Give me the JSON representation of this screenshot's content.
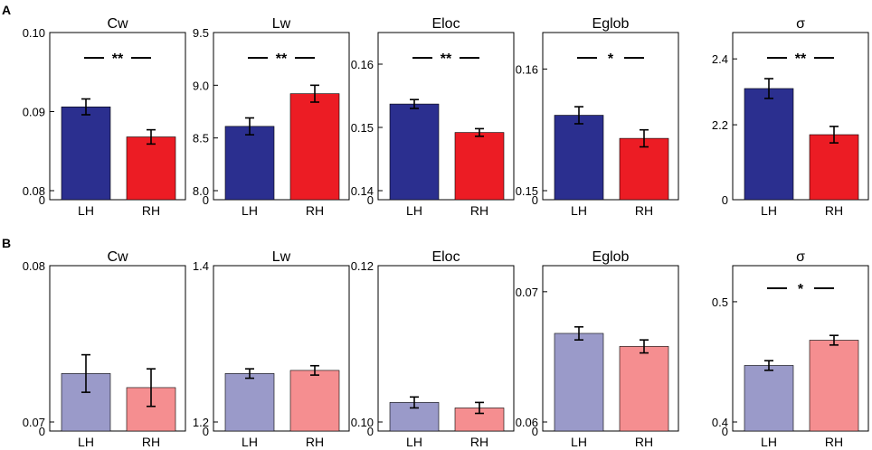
{
  "panels": [
    {
      "label": "A"
    },
    {
      "label": "B"
    }
  ],
  "chart_data": [
    {
      "type": "bar",
      "panel": "A",
      "title": "Cw",
      "categories": [
        "LH",
        "RH"
      ],
      "values": [
        0.0906,
        0.0868
      ],
      "errors": [
        0.001,
        0.0009
      ],
      "colors": [
        "#2b2f8f",
        "#ec1c24"
      ],
      "ylim": [
        0,
        0.1
      ],
      "yticks": [
        0,
        0.08,
        0.09,
        0.1
      ],
      "ytick_labels": [
        "0",
        "0.08",
        "0.09",
        "0.10"
      ],
      "y_break_below": 0.08,
      "significance": "**"
    },
    {
      "type": "bar",
      "panel": "A",
      "title": "Lw",
      "categories": [
        "LH",
        "RH"
      ],
      "values": [
        8.61,
        8.92
      ],
      "errors": [
        0.08,
        0.08
      ],
      "colors": [
        "#2b2f8f",
        "#ec1c24"
      ],
      "ylim": [
        0,
        9.5
      ],
      "yticks": [
        0,
        8.0,
        8.5,
        9.0,
        9.5
      ],
      "ytick_labels": [
        "0",
        "8.0",
        "8.5",
        "9.0",
        "9.5"
      ],
      "y_break_below": 8.0,
      "significance": "**"
    },
    {
      "type": "bar",
      "panel": "A",
      "title": "Eloc",
      "categories": [
        "LH",
        "RH"
      ],
      "values": [
        0.1537,
        0.1492
      ],
      "errors": [
        0.0007,
        0.0006
      ],
      "colors": [
        "#2b2f8f",
        "#ec1c24"
      ],
      "ylim": [
        0,
        0.165
      ],
      "yticks": [
        0,
        0.14,
        0.15,
        0.16
      ],
      "ytick_labels": [
        "0",
        "0.14",
        "0.15",
        "0.16"
      ],
      "y_break_below": 0.14,
      "significance": "**"
    },
    {
      "type": "bar",
      "panel": "A",
      "title": "Eglob",
      "categories": [
        "LH",
        "RH"
      ],
      "values": [
        0.1562,
        0.1543
      ],
      "errors": [
        0.0007,
        0.0007
      ],
      "colors": [
        "#2b2f8f",
        "#ec1c24"
      ],
      "ylim": [
        0,
        0.163
      ],
      "yticks": [
        0,
        0.15,
        0.16
      ],
      "ytick_labels": [
        "0",
        "0.15",
        "0.16"
      ],
      "y_break_below": 0.15,
      "significance": "*"
    },
    {
      "type": "bar",
      "panel": "A",
      "title": "σ",
      "categories": [
        "LH",
        "RH"
      ],
      "values": [
        2.31,
        2.17
      ],
      "errors": [
        0.03,
        0.025
      ],
      "colors": [
        "#2b2f8f",
        "#ec1c24"
      ],
      "ylim": [
        0,
        2.48
      ],
      "yticks": [
        0,
        2.2,
        2.4
      ],
      "ytick_labels": [
        "0",
        "2.2",
        "2.4"
      ],
      "y_break_below": 2.0,
      "significance": "**"
    },
    {
      "type": "bar",
      "panel": "B",
      "title": "Cw",
      "categories": [
        "LH",
        "RH"
      ],
      "values": [
        0.0731,
        0.0722
      ],
      "errors": [
        0.0012,
        0.0012
      ],
      "colors": [
        "#9a9ac9",
        "#f58e90"
      ],
      "ylim": [
        0,
        0.08
      ],
      "yticks": [
        0,
        0.07,
        0.08
      ],
      "ytick_labels": [
        "0",
        "0.07",
        "0.08"
      ],
      "y_break_below": 0.07,
      "significance": ""
    },
    {
      "type": "bar",
      "panel": "B",
      "title": "Lw",
      "categories": [
        "LH",
        "RH"
      ],
      "values": [
        1.262,
        1.266
      ],
      "errors": [
        0.006,
        0.006
      ],
      "colors": [
        "#9a9ac9",
        "#f58e90"
      ],
      "ylim": [
        0,
        1.4
      ],
      "yticks": [
        0,
        1.2,
        1.4
      ],
      "ytick_labels": [
        "0",
        "1.2",
        "1.4"
      ],
      "y_break_below": 1.2,
      "significance": ""
    },
    {
      "type": "bar",
      "panel": "B",
      "title": "Eloc",
      "categories": [
        "LH",
        "RH"
      ],
      "values": [
        0.1025,
        0.1018
      ],
      "errors": [
        0.0007,
        0.0007
      ],
      "colors": [
        "#9a9ac9",
        "#f58e90"
      ],
      "ylim": [
        0,
        0.12
      ],
      "yticks": [
        0,
        0.1,
        0.12
      ],
      "ytick_labels": [
        "0",
        "0.10",
        "0.12"
      ],
      "y_break_below": 0.1,
      "significance": ""
    },
    {
      "type": "bar",
      "panel": "B",
      "title": "Eglob",
      "categories": [
        "LH",
        "RH"
      ],
      "values": [
        0.0668,
        0.0658
      ],
      "errors": [
        0.0005,
        0.0005
      ],
      "colors": [
        "#9a9ac9",
        "#f58e90"
      ],
      "ylim": [
        0,
        0.072
      ],
      "yticks": [
        0,
        0.06,
        0.07
      ],
      "ytick_labels": [
        "0",
        "0.06",
        "0.07"
      ],
      "y_break_below": 0.06,
      "significance": ""
    },
    {
      "type": "bar",
      "panel": "B",
      "title": "σ",
      "categories": [
        "LH",
        "RH"
      ],
      "values": [
        0.447,
        0.468
      ],
      "errors": [
        0.004,
        0.004
      ],
      "colors": [
        "#9a9ac9",
        "#f58e90"
      ],
      "ylim": [
        0,
        0.53
      ],
      "yticks": [
        0,
        0.4,
        0.5
      ],
      "ytick_labels": [
        "0",
        "0.4",
        "0.5"
      ],
      "y_break_below": 0.4,
      "significance": "*"
    }
  ]
}
